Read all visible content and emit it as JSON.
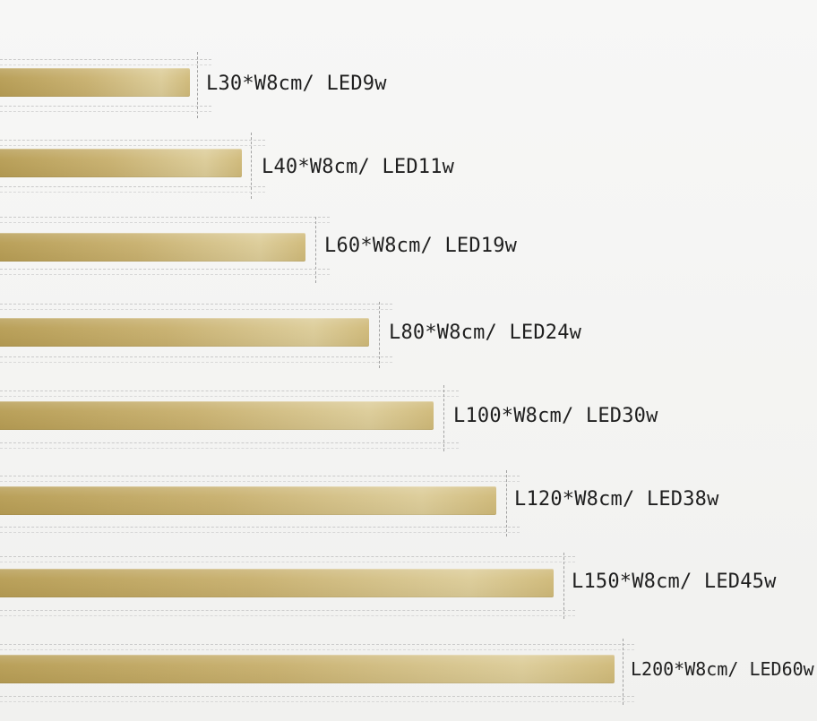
{
  "dimension_items": [
    {
      "label": "L30*W8cm/ LED9w"
    },
    {
      "label": "L40*W8cm/ LED11w"
    },
    {
      "label": "L60*W8cm/ LED19w"
    },
    {
      "label": "L80*W8cm/ LED24w"
    },
    {
      "label": "L100*W8cm/ LED30w"
    },
    {
      "label": "L120*W8cm/ LED38w"
    },
    {
      "label": "L150*W8cm/ LED45w"
    },
    {
      "label": "L200*W8cm/ LED60w"
    }
  ]
}
